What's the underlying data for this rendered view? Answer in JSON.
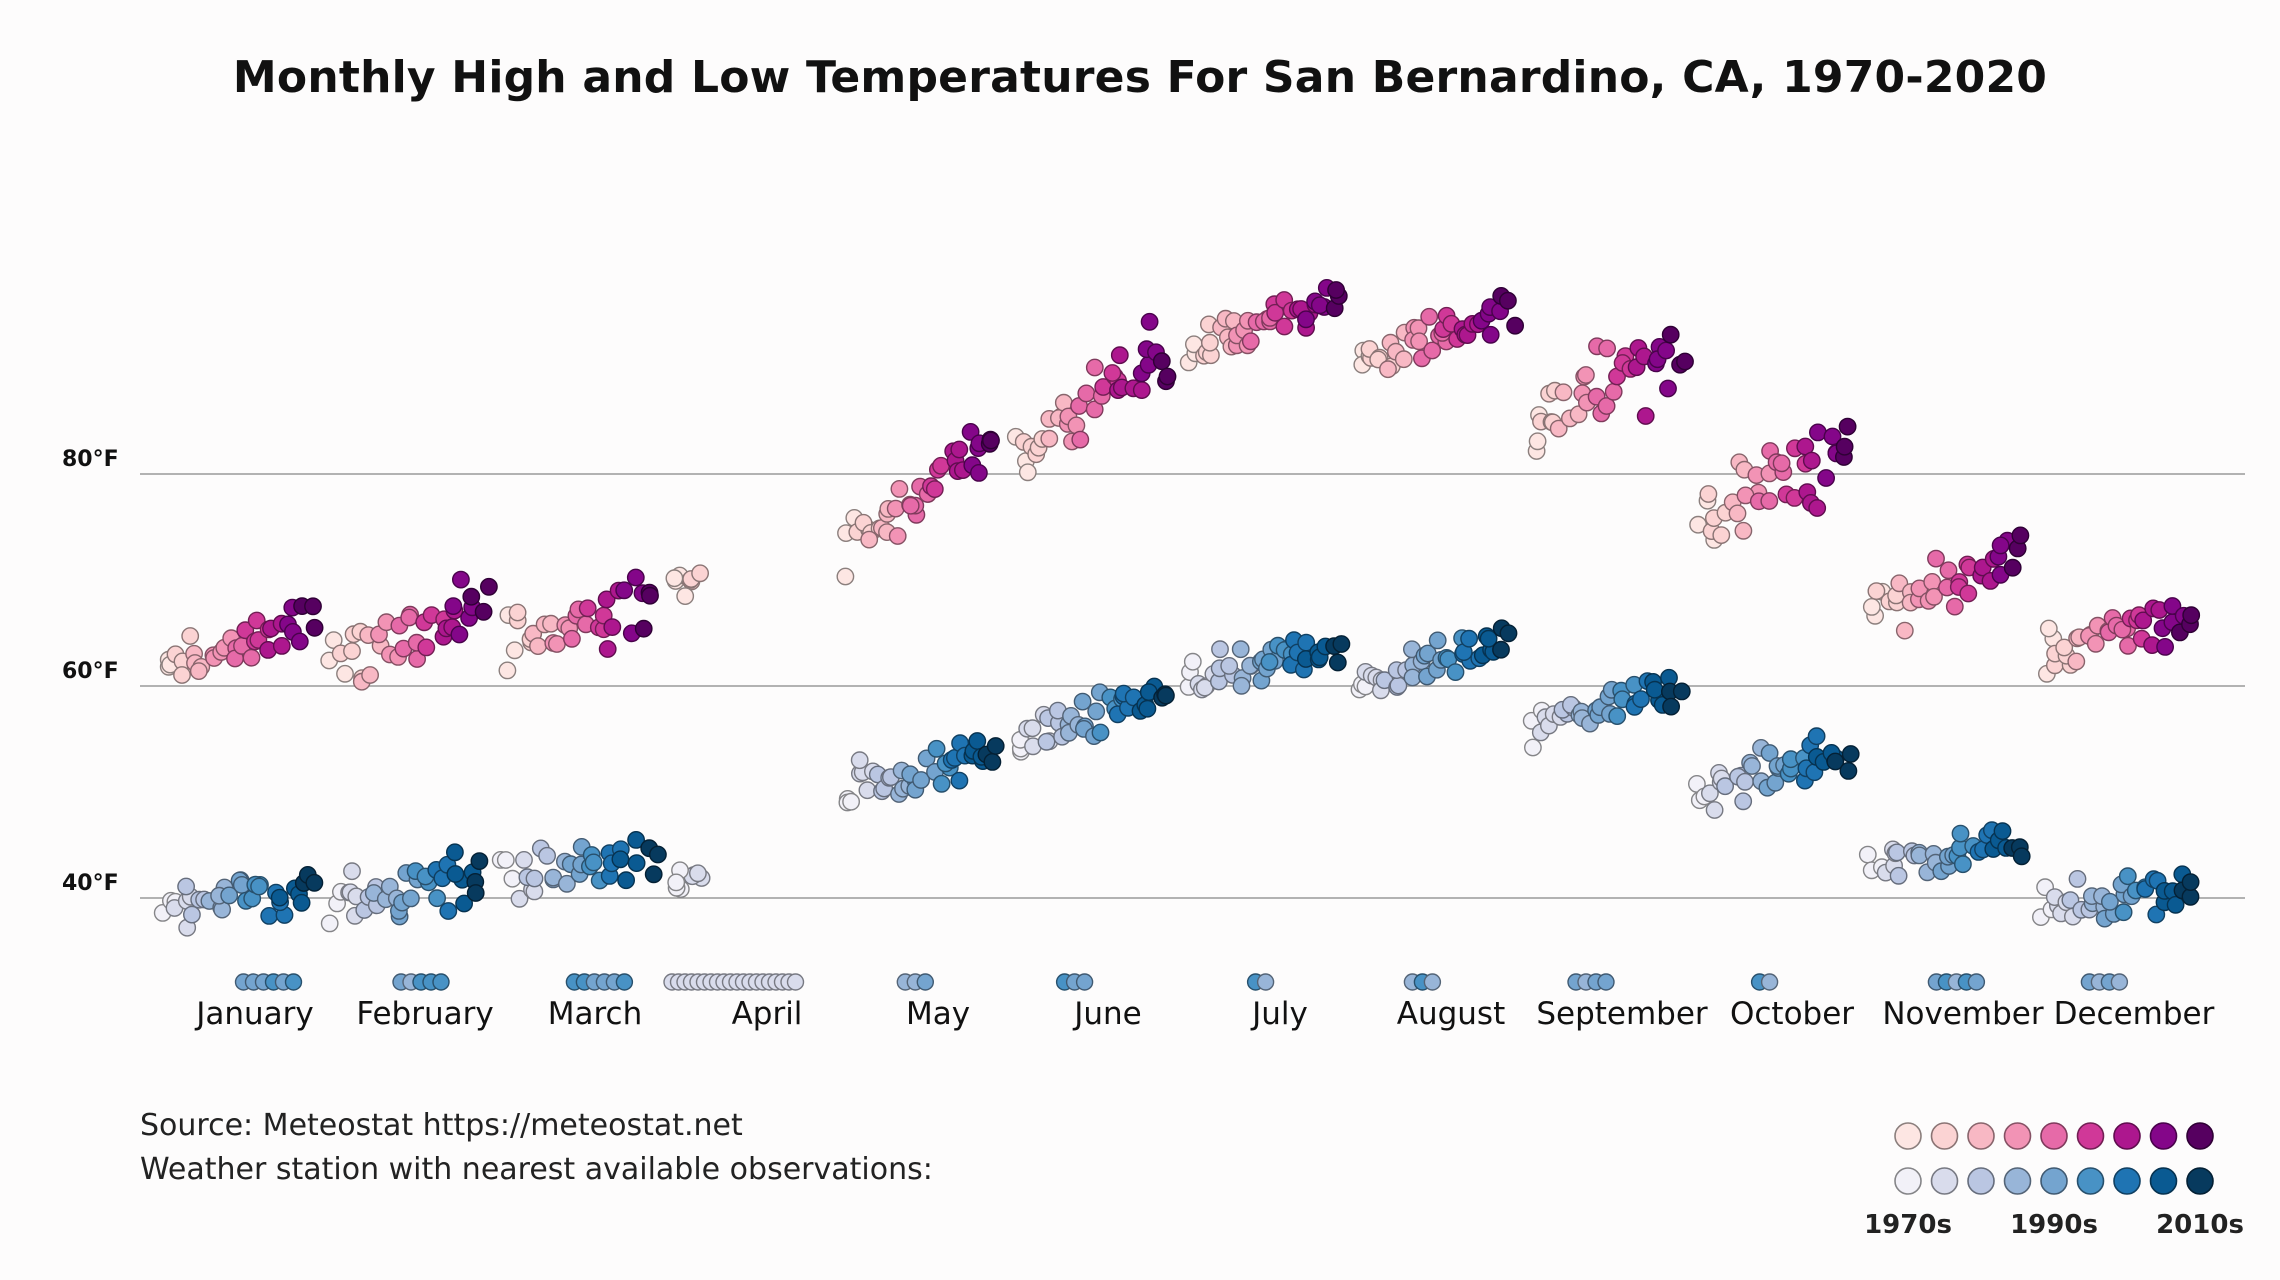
{
  "title": "Monthly High and Low Temperatures For San Bernardino, CA, 1970-2020",
  "source": {
    "line1": "Source: Meteostat https://meteostat.net",
    "line2": "Weather station with nearest available observations:"
  },
  "colors": {
    "high_ramp": [
      "#fde6e3",
      "#fbd3d3",
      "#f8b8c4",
      "#f293b5",
      "#e66aa8",
      "#d03898",
      "#ad178e",
      "#840689",
      "#560060"
    ],
    "low_ramp": [
      "#f2f1f8",
      "#d9dcec",
      "#bac6e2",
      "#98b5d8",
      "#74a4cf",
      "#4892c5",
      "#1f74b3",
      "#0a5a92",
      "#073a5e"
    ],
    "gridline": "#9a9a9a",
    "background": "#fdfcfc"
  },
  "legend": {
    "labels": [
      "1970s",
      "1990s",
      "2010s"
    ]
  },
  "chart_data": {
    "type": "scatter",
    "title": "Monthly High and Low Temperatures For San Bernardino, CA, 1970-2020",
    "x_axis": {
      "categories": [
        "January",
        "February",
        "March",
        "April",
        "May",
        "June",
        "July",
        "August",
        "September",
        "October",
        "November",
        "December"
      ]
    },
    "y_axis": {
      "ticks": [
        40,
        60,
        80
      ],
      "tick_labels": [
        "40°F",
        "60°F",
        "80°F"
      ],
      "range": [
        30,
        100
      ],
      "grid": true
    },
    "legend_position": "bottom-right",
    "color_encoding": "year 1970-2020, light to dark",
    "missing_marker_row": true,
    "series": [
      {
        "name": "High",
        "month_means": [
          64,
          65,
          66,
          72,
          78,
          87,
          94,
          93,
          88,
          79,
          70,
          65
        ],
        "month_spread": [
          5,
          5,
          5,
          4,
          4,
          5,
          3,
          3,
          5,
          5,
          4,
          4
        ],
        "trend_per_decade": [
          1,
          1,
          1,
          1,
          2,
          2,
          1,
          1,
          1.5,
          1,
          1,
          0.5
        ]
      },
      {
        "name": "Low",
        "month_means": [
          40,
          41,
          43,
          42,
          52,
          57,
          62,
          62,
          58,
          52,
          44,
          40
        ],
        "month_spread": [
          3,
          4,
          4,
          3,
          3,
          3,
          3,
          3,
          3,
          3,
          3,
          3
        ],
        "trend_per_decade": [
          0.5,
          0.5,
          0.5,
          0.5,
          0.8,
          0.8,
          0.8,
          0.8,
          0.8,
          0.8,
          0.5,
          0.3
        ]
      }
    ],
    "missing_years_per_month": [
      6,
      5,
      6,
      20,
      3,
      3,
      2,
      3,
      4,
      2,
      5,
      4
    ],
    "years_with_data_per_month": [
      36,
      38,
      34,
      8,
      40,
      40,
      42,
      40,
      38,
      40,
      36,
      38
    ],
    "year_range": [
      1970,
      2020
    ]
  }
}
